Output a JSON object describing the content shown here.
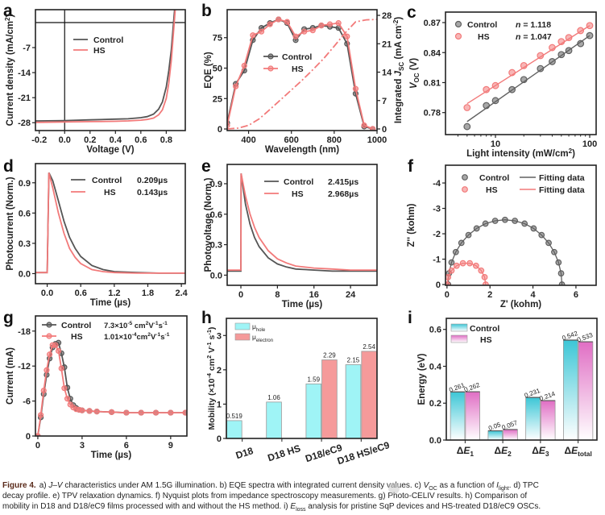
{
  "figure": {
    "caption": {
      "label": "Figure 4.",
      "lines": [
        "a) *J*–*V* characteristics under AM 1.5G illumination. b) EQE spectra with integrated current density values. c) *V*_{OC} as a function of *I*_{light}. d) TPC",
        "decay profile. e) TPV relaxation dynamics. f) Nyquist plots from impedance spectroscopy measurements. g) Photo-CELIV results. h) Comparison of",
        "mobility in D18 and D18/eC9 films processed with and without the HS method. i) *E*_{loss} analysis for pristine SqP devices and HS-treated D18/eC9 OSCs."
      ]
    },
    "watermark": "公众号 · 先进光伏"
  },
  "chart_data": [
    {
      "panel": "a",
      "type": "line",
      "xlabel": "Voltage (V)",
      "ylabel": "Current density (mA/cm^{2})",
      "xlim": [
        -0.23,
        0.95
      ],
      "ylim": [
        -30.2,
        3.6
      ],
      "xticks": [
        "-0.2",
        "0.0",
        "0.2",
        "0.4",
        "0.6",
        "0.8"
      ],
      "yticks": [
        "-7",
        "-14",
        "-21",
        "-28"
      ],
      "zero_lines": true,
      "legend": "upper-center",
      "series": [
        {
          "name": "Control",
          "color": "#555555",
          "x": [
            -0.23,
            -0.2,
            0,
            0.2,
            0.4,
            0.5,
            0.6,
            0.65,
            0.7,
            0.74,
            0.77,
            0.8,
            0.82,
            0.84,
            0.86,
            0.88
          ],
          "y": [
            -27.5,
            -27.5,
            -27.4,
            -27.2,
            -27.0,
            -26.9,
            -26.6,
            -26.3,
            -25.6,
            -24.2,
            -22.2,
            -18.0,
            -13.5,
            -7.5,
            1.0,
            10
          ]
        },
        {
          "name": "HS",
          "color": "#f27a7a",
          "x": [
            -0.23,
            -0.2,
            0,
            0.2,
            0.4,
            0.5,
            0.6,
            0.65,
            0.7,
            0.74,
            0.77,
            0.8,
            0.82,
            0.84,
            0.86,
            0.88
          ],
          "y": [
            -27.9,
            -27.9,
            -27.8,
            -27.7,
            -27.6,
            -27.5,
            -27.3,
            -27.1,
            -26.7,
            -25.8,
            -24.4,
            -21.2,
            -17.0,
            -10.5,
            -1.5,
            8
          ]
        }
      ]
    },
    {
      "panel": "b",
      "type": "line",
      "xlabel": "Wavelength (nm)",
      "ylabel": "EQE (%)",
      "y2label": "Integrated *J*_{SC} (mA cm^{-2})",
      "xlim": [
        300,
        1000
      ],
      "ylim": [
        -1.3,
        98
      ],
      "y2lim": [
        -0.4,
        29.4
      ],
      "xticks": [
        "400",
        "600",
        "800",
        "1000"
      ],
      "yticks": [
        "0",
        "25",
        "50",
        "75"
      ],
      "y2ticks": [
        "0",
        "7",
        "14",
        "21",
        "28"
      ],
      "legend": "center",
      "series": [
        {
          "name": "Control",
          "color": "#555555",
          "markers": true,
          "x": [
            300,
            340,
            380,
            420,
            460,
            500,
            540,
            580,
            620,
            660,
            700,
            740,
            780,
            820,
            860,
            900,
            940,
            980
          ],
          "y": [
            5,
            37,
            48,
            73,
            83,
            87,
            90,
            87,
            73,
            82,
            83,
            85,
            84,
            83,
            70,
            29,
            2,
            0
          ]
        },
        {
          "name": "HS",
          "color": "#f27a7a",
          "markers": true,
          "x": [
            300,
            340,
            380,
            420,
            460,
            500,
            540,
            580,
            620,
            660,
            700,
            740,
            780,
            820,
            860,
            900,
            940,
            980
          ],
          "y": [
            3,
            35,
            52,
            77,
            80,
            86,
            90,
            88,
            76,
            80,
            81,
            85,
            86,
            87,
            76,
            33,
            3,
            0
          ]
        },
        {
          "axis": "right",
          "style": "dashdot",
          "color": "#f27a7a",
          "x": [
            300,
            350,
            400,
            450,
            500,
            550,
            600,
            650,
            700,
            750,
            800,
            850,
            900,
            950,
            1000
          ],
          "y": [
            0,
            0.2,
            0.9,
            2.5,
            4.8,
            7.2,
            9.6,
            12,
            14.6,
            17.3,
            20.4,
            23.6,
            26.4,
            26.9,
            27.0
          ]
        }
      ]
    },
    {
      "panel": "c",
      "type": "scatter",
      "xscale": "log",
      "xlabel": "Light intensity (mW/cm^{2})",
      "ylabel": "*V*_{OC} (V)",
      "xlim": [
        2.95,
        117
      ],
      "ylim": [
        0.758,
        0.8805
      ],
      "xticks": [
        "10",
        "100"
      ],
      "yticks": [
        "0.78",
        "0.81",
        "0.84",
        "0.87"
      ],
      "legend": "upper-left",
      "series": [
        {
          "name": "Control",
          "color": "#606060",
          "n_label": "*n* = 1.118",
          "x": [
            5,
            8,
            10,
            15,
            20,
            30,
            40,
            50,
            60,
            80,
            100
          ],
          "y": [
            0.766,
            0.787,
            0.792,
            0.803,
            0.813,
            0.824,
            0.831,
            0.838,
            0.842,
            0.849,
            0.857
          ],
          "fit": {
            "x": [
              5,
              100
            ],
            "y": [
              0.771,
              0.857
            ]
          }
        },
        {
          "name": "HS",
          "color": "#f27a7a",
          "n_label": "*n* = 1.047",
          "x": [
            5,
            8,
            10,
            15,
            20,
            30,
            40,
            50,
            60,
            80,
            100
          ],
          "y": [
            0.785,
            0.803,
            0.807,
            0.82,
            0.827,
            0.837,
            0.845,
            0.851,
            0.855,
            0.862,
            0.867
          ],
          "fit": {
            "x": [
              5,
              100
            ],
            "y": [
              0.789,
              0.867
            ]
          }
        }
      ]
    },
    {
      "panel": "d",
      "type": "line",
      "xlabel": "Time (µs)",
      "ylabel": "Photocurrent (Norm.)",
      "xlim": [
        -0.21,
        2.47
      ],
      "ylim": [
        -0.1,
        1.09
      ],
      "xticks": [
        "0.0",
        "0.6",
        "1.2",
        "1.8",
        "2.4"
      ],
      "yticks": [
        "0.0",
        "0.3",
        "0.6",
        "0.9"
      ],
      "legend": "upper-right",
      "series": [
        {
          "name": "Control",
          "color": "#555555",
          "lifetime": "0.209µs",
          "x": [
            -0.21,
            0,
            0.03,
            0.1,
            0.2,
            0.3,
            0.4,
            0.5,
            0.6,
            0.8,
            1.0,
            1.2,
            1.6,
            2.0,
            2.47
          ],
          "y": [
            0.01,
            0.01,
            1.0,
            0.92,
            0.72,
            0.52,
            0.36,
            0.25,
            0.17,
            0.08,
            0.04,
            0.02,
            0.01,
            0.005,
            0.005
          ]
        },
        {
          "name": "HS",
          "color": "#f27a7a",
          "lifetime": "0.143µs",
          "x": [
            -0.21,
            0,
            0.03,
            0.1,
            0.2,
            0.3,
            0.4,
            0.5,
            0.6,
            0.8,
            1.0,
            1.2,
            1.6,
            2.0,
            2.47
          ],
          "y": [
            0.01,
            0.01,
            1.0,
            0.85,
            0.6,
            0.4,
            0.25,
            0.16,
            0.1,
            0.04,
            0.02,
            0.01,
            0.005,
            0.005,
            0.005
          ]
        }
      ]
    },
    {
      "panel": "e",
      "type": "line",
      "xlabel": "Time (µs)",
      "ylabel": "Photovoltage (Norm.)",
      "xlim": [
        -3,
        29.8
      ],
      "ylim": [
        -0.1,
        1.09
      ],
      "xticks": [
        "0",
        "8",
        "16",
        "24"
      ],
      "yticks": [
        "0.0",
        "0.3",
        "0.6",
        "0.9"
      ],
      "legend": "upper-right",
      "series": [
        {
          "name": "Control",
          "color": "#555555",
          "lifetime": "2.415µs",
          "x": [
            -3,
            0,
            0.05,
            1,
            2,
            3,
            4,
            6,
            8,
            10,
            12,
            16,
            20,
            24,
            29.8
          ],
          "y": [
            0.04,
            0.04,
            1.0,
            0.7,
            0.5,
            0.37,
            0.28,
            0.17,
            0.11,
            0.08,
            0.06,
            0.05,
            0.04,
            0.04,
            0.04
          ]
        },
        {
          "name": "HS",
          "color": "#f27a7a",
          "lifetime": "2.968µs",
          "x": [
            -3,
            0,
            0.05,
            1,
            2,
            3,
            4,
            6,
            8,
            10,
            12,
            16,
            20,
            24,
            29.8
          ],
          "y": [
            0.05,
            0.05,
            1.0,
            0.78,
            0.6,
            0.47,
            0.37,
            0.24,
            0.16,
            0.12,
            0.09,
            0.07,
            0.06,
            0.05,
            0.05
          ]
        }
      ]
    },
    {
      "panel": "f",
      "type": "scatter",
      "xlabel": "Z' (kohm)",
      "ylabel": "Z'' (kohm)",
      "xlim": [
        -0.07,
        6.94
      ],
      "ylim": [
        0.03,
        -4.7
      ],
      "xticks": [
        "0",
        "2",
        "4",
        "6"
      ],
      "yticks": [
        "0",
        "-1",
        "-2",
        "-3",
        "-4"
      ],
      "legend": "upper",
      "series": [
        {
          "name": "Control",
          "color": "#606060",
          "fit_label": "Fitting data",
          "x": [
            5.35,
            5.31,
            5.19,
            4.99,
            4.73,
            4.4,
            4.03,
            3.61,
            3.16,
            2.7,
            2.24,
            1.79,
            1.38,
            1.0,
            0.67,
            0.41,
            0.21,
            0.09,
            0.05
          ],
          "y": [
            0,
            -0.44,
            -0.87,
            -1.28,
            -1.64,
            -1.95,
            -2.21,
            -2.4,
            -2.51,
            -2.55,
            -2.51,
            -2.4,
            -2.21,
            -1.95,
            -1.64,
            -1.28,
            -0.87,
            -0.44,
            0
          ]
        },
        {
          "name": "HS",
          "color": "#f27a7a",
          "fit_label": "Fitting data",
          "x": [
            1.8,
            1.75,
            1.59,
            1.35,
            1.06,
            0.74,
            0.45,
            0.21,
            0.05,
            0.0
          ],
          "y": [
            0,
            -0.29,
            -0.55,
            -0.74,
            -0.84,
            -0.84,
            -0.74,
            -0.55,
            -0.29,
            0
          ]
        }
      ]
    },
    {
      "panel": "g",
      "type": "line",
      "xlabel": "Time (µs)",
      "ylabel": "Current (mA)",
      "xlim": [
        -0.16,
        10.1
      ],
      "ylim": [
        0,
        -20.6
      ],
      "xticks": [
        "0",
        "3",
        "6",
        "9"
      ],
      "yticks": [
        "0",
        "-6",
        "-12",
        "-18"
      ],
      "legend": "upper",
      "series": [
        {
          "name": "Control",
          "color": "#555555",
          "markers": true,
          "mobility": "7.3×10^{-5} cm^{2}V^{-1}s^{-1}",
          "x": [
            0,
            0.2,
            0.4,
            0.6,
            0.8,
            1.0,
            1.2,
            1.4,
            1.6,
            1.8,
            2.0,
            2.2,
            2.4,
            2.6,
            2.8,
            3,
            3.5,
            4,
            5,
            6,
            7,
            8,
            9,
            10
          ],
          "y": [
            0,
            -3.2,
            -7.2,
            -10.5,
            -13.3,
            -15.2,
            -15.8,
            -16.0,
            -14.2,
            -11.8,
            -8.3,
            -6.4,
            -5.3,
            -4.8,
            -4.5,
            -4.4,
            -4.3,
            -4.2,
            -4.1,
            -4.0,
            -4.0,
            -4.0,
            -4.0,
            -4.0
          ]
        },
        {
          "name": "HS",
          "color": "#f27a7a",
          "markers": true,
          "mobility": "1.01×10^{-4}cm^{2}V^{-1}s^{-1}",
          "x": [
            0,
            0.2,
            0.4,
            0.6,
            0.8,
            1.0,
            1.2,
            1.4,
            1.6,
            1.8,
            2.0,
            2.2,
            2.4,
            2.6,
            2.8,
            3,
            3.5,
            4,
            5,
            6,
            7,
            8,
            9,
            10
          ],
          "y": [
            0,
            -3.6,
            -7.8,
            -11.3,
            -14.0,
            -15.6,
            -15.6,
            -14.6,
            -11.6,
            -8.2,
            -6.4,
            -5.4,
            -4.9,
            -4.6,
            -4.5,
            -4.4,
            -4.3,
            -4.2,
            -4.1,
            -4.0,
            -4.0,
            -4.0,
            -4.0,
            -4.0
          ]
        }
      ]
    },
    {
      "panel": "h",
      "type": "bar",
      "ylabel": "Mobility (×10^{-4} cm^{2} V^{-1} s^{-1})",
      "categories": [
        "D18",
        "D18 HS",
        "D18/eC9",
        "D18 HS/eC9"
      ],
      "ylim": [
        0,
        3.5
      ],
      "yticks": [
        "0",
        "1",
        "2",
        "3"
      ],
      "legend": "upper-left",
      "series": [
        {
          "name": "μ_{hole}",
          "color": "#9ff4f6",
          "values": [
            0.519,
            1.06,
            1.59,
            2.15
          ],
          "labels": [
            "0.519",
            "1.06",
            "1.59",
            "2.15"
          ]
        },
        {
          "name": "μ_{electron}",
          "color": "#f59a9a",
          "values": [
            null,
            null,
            2.29,
            2.54
          ],
          "labels": [
            null,
            null,
            "2.29",
            "2.54"
          ]
        }
      ]
    },
    {
      "panel": "i",
      "type": "bar",
      "ylabel": "Energy (eV)",
      "categories": [
        "Δ*E*_{1}",
        "Δ*E*_{2}",
        "Δ*E*_{3}",
        "Δ*E*_{total}"
      ],
      "ylim": [
        0,
        0.66
      ],
      "yticks": [
        "0.0",
        "0.2",
        "0.4",
        "0.6"
      ],
      "legend": "upper-left",
      "bar_fill": "gradient-to-white",
      "series": [
        {
          "name": "Control",
          "color": "#3cc6d6",
          "values": [
            0.261,
            0.05,
            0.231,
            0.542
          ],
          "labels": [
            "0.261",
            "0.05",
            "0.231",
            "0.542"
          ]
        },
        {
          "name": "HS",
          "color": "#e06ec4",
          "values": [
            0.262,
            0.057,
            0.214,
            0.533
          ],
          "labels": [
            "0.262",
            "0.057",
            "0.214",
            "0.533"
          ]
        }
      ]
    }
  ]
}
